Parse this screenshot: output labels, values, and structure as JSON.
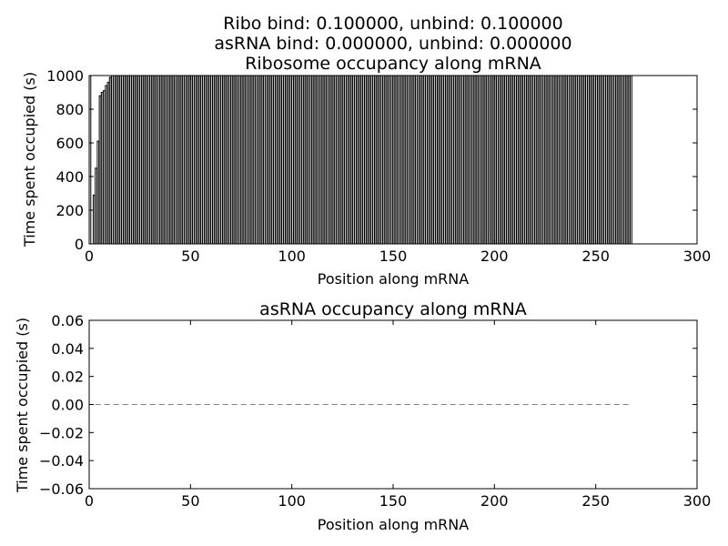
{
  "figure": {
    "title_lines": [
      "Ribo bind: 0.100000, unbind: 0.100000",
      "asRNA bind: 0.000000, unbind: 0.000000"
    ]
  },
  "chart_data": [
    {
      "type": "bar",
      "title": "Ribosome occupancy along mRNA",
      "xlabel": "Position along mRNA",
      "ylabel": "Time spent occupied (s)",
      "xlim": [
        0,
        300
      ],
      "ylim": [
        0,
        1000
      ],
      "xticks": [
        0,
        50,
        100,
        150,
        200,
        250,
        300
      ],
      "yticks": [
        0,
        200,
        400,
        600,
        800,
        1000
      ],
      "grid": false,
      "bar_width": 0.8,
      "positions": {
        "start": 0,
        "end": 267
      },
      "values_head": [
        1000,
        0,
        290,
        450,
        610,
        880,
        900,
        910,
        940,
        960,
        990
      ],
      "values_rest_default": 1000,
      "color": "#000000"
    },
    {
      "type": "line",
      "title": "asRNA occupancy along mRNA",
      "xlabel": "Position along mRNA",
      "ylabel": "Time spent occupied (s)",
      "xlim": [
        0,
        300
      ],
      "ylim": [
        -0.06,
        0.06
      ],
      "xticks": [
        0,
        50,
        100,
        150,
        200,
        250,
        300
      ],
      "yticks": [
        -0.06,
        -0.04,
        -0.02,
        0.0,
        0.02,
        0.04,
        0.06
      ],
      "ytick_labels": [
        "−0.06",
        "−0.04",
        "−0.02",
        "0.00",
        "0.02",
        "0.04",
        "0.06"
      ],
      "grid": false,
      "series": [
        {
          "x": [
            3,
            267
          ],
          "y": [
            0,
            0
          ],
          "style": "dashed",
          "color": "#808080"
        }
      ]
    }
  ]
}
